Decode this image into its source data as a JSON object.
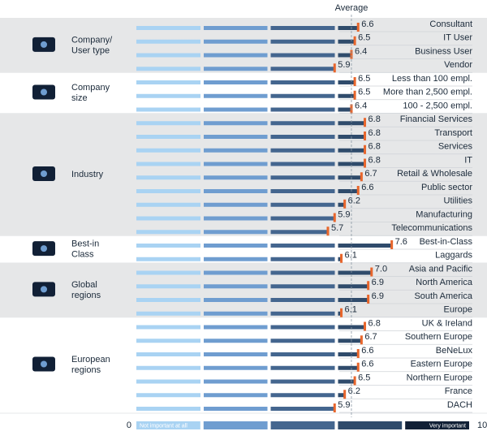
{
  "chart_data": {
    "type": "bar",
    "orientation": "horizontal",
    "average_label": "Average",
    "average": 6.4,
    "xlim": [
      0,
      10
    ],
    "xticks": [
      0,
      10
    ],
    "scale_colors": [
      "#a9d3f3",
      "#6f9dd0",
      "#44668f",
      "#2f4b6b",
      "#112036"
    ],
    "scale_labels": [
      "Not important at all",
      "Very important"
    ],
    "marker_color": "#e8662c",
    "shade_color": "#e6e7e8",
    "groups": [
      {
        "label": [
          "Company/",
          "User type"
        ],
        "shaded": true,
        "categories": [
          "Consultant",
          "IT User",
          "Business User",
          "Vendor"
        ],
        "values": [
          6.6,
          6.5,
          6.4,
          5.9
        ],
        "value_labels": [
          "6.6",
          "6.5",
          "6.4",
          "5.9"
        ]
      },
      {
        "label": [
          "Company",
          "size"
        ],
        "shaded": false,
        "categories": [
          "Less than 100 empl.",
          "More than 2,500 empl.",
          "100 - 2,500 empl."
        ],
        "values": [
          6.5,
          6.5,
          6.4
        ],
        "value_labels": [
          "6.5",
          "6.5",
          "6.4"
        ]
      },
      {
        "label": [
          "Industry"
        ],
        "shaded": true,
        "categories": [
          "Financial Services",
          "Transport",
          "Services",
          "IT",
          "Retail & Wholesale",
          "Public sector",
          "Utilities",
          "Manufacturing",
          "Telecommunications"
        ],
        "values": [
          6.8,
          6.8,
          6.8,
          6.8,
          6.7,
          6.6,
          6.2,
          5.9,
          5.7
        ],
        "value_labels": [
          "6.8",
          "6.8",
          "6.8",
          "6.8",
          "6.7",
          "6.6",
          "6.2",
          "5.9",
          "5.7"
        ]
      },
      {
        "label": [
          "Best-in",
          "Class"
        ],
        "shaded": false,
        "categories": [
          "Best-in-Class",
          "Laggards"
        ],
        "values": [
          7.6,
          6.1
        ],
        "value_labels": [
          "7.6",
          "6.1"
        ]
      },
      {
        "label": [
          "Global",
          "regions"
        ],
        "shaded": true,
        "categories": [
          "Asia and Pacific",
          "North America",
          "South America",
          "Europe"
        ],
        "values": [
          7.0,
          6.9,
          6.9,
          6.1
        ],
        "value_labels": [
          "7.0",
          "6.9",
          "6.9",
          "6.1"
        ]
      },
      {
        "label": [
          "European",
          "regions"
        ],
        "shaded": false,
        "categories": [
          "UK & Ireland",
          "Southern Europe",
          "BeNeLux",
          "Eastern Europe",
          "Northern Europe",
          "France",
          "DACH"
        ],
        "values": [
          6.8,
          6.7,
          6.6,
          6.6,
          6.5,
          6.2,
          5.9
        ],
        "value_labels": [
          "6.8",
          "6.7",
          "6.6",
          "6.6",
          "6.5",
          "6.2",
          "5.9"
        ]
      }
    ]
  }
}
